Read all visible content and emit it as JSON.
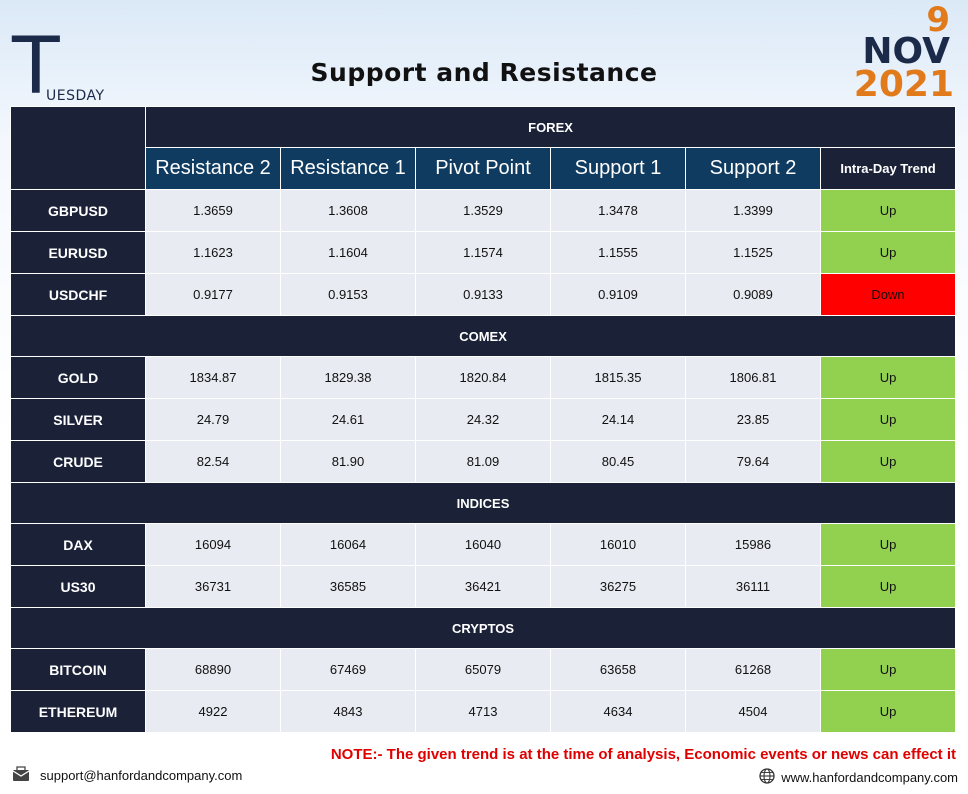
{
  "header": {
    "day_initial": "T",
    "day_rest": "UESDAY",
    "title": "Support and Resistance",
    "date_day": "9",
    "date_month": "NOV",
    "date_year": "2021"
  },
  "columns": [
    "Resistance 2",
    "Resistance 1",
    "Pivot Point",
    "Support 1",
    "Support 2",
    "Intra-Day Trend"
  ],
  "sections": [
    {
      "name": "FOREX",
      "rows": [
        {
          "instrument": "GBPUSD",
          "values": [
            "1.3659",
            "1.3608",
            "1.3529",
            "1.3478",
            "1.3399"
          ],
          "trend": "Up"
        },
        {
          "instrument": "EURUSD",
          "values": [
            "1.1623",
            "1.1604",
            "1.1574",
            "1.1555",
            "1.1525"
          ],
          "trend": "Up"
        },
        {
          "instrument": "USDCHF",
          "values": [
            "0.9177",
            "0.9153",
            "0.9133",
            "0.9109",
            "0.9089"
          ],
          "trend": "Down"
        }
      ]
    },
    {
      "name": "COMEX",
      "rows": [
        {
          "instrument": "GOLD",
          "values": [
            "1834.87",
            "1829.38",
            "1820.84",
            "1815.35",
            "1806.81"
          ],
          "trend": "Up"
        },
        {
          "instrument": "SILVER",
          "values": [
            "24.79",
            "24.61",
            "24.32",
            "24.14",
            "23.85"
          ],
          "trend": "Up"
        },
        {
          "instrument": "CRUDE",
          "values": [
            "82.54",
            "81.90",
            "81.09",
            "80.45",
            "79.64"
          ],
          "trend": "Up"
        }
      ]
    },
    {
      "name": "INDICES",
      "rows": [
        {
          "instrument": "DAX",
          "values": [
            "16094",
            "16064",
            "16040",
            "16010",
            "15986"
          ],
          "trend": "Up"
        },
        {
          "instrument": "US30",
          "values": [
            "36731",
            "36585",
            "36421",
            "36275",
            "36111"
          ],
          "trend": "Up"
        }
      ]
    },
    {
      "name": "CRYPTOS",
      "rows": [
        {
          "instrument": "BITCOIN",
          "values": [
            "68890",
            "67469",
            "65079",
            "63658",
            "61268"
          ],
          "trend": "Up"
        },
        {
          "instrument": "ETHEREUM",
          "values": [
            "4922",
            "4843",
            "4713",
            "4634",
            "4504"
          ],
          "trend": "Up"
        }
      ]
    }
  ],
  "trend_colors": {
    "Up": "#92d050",
    "Down": "#ff0000"
  },
  "footer": {
    "note": "NOTE:- The given trend is at the time of analysis, Economic events or news can effect it",
    "email": "support@hanfordandcompany.com",
    "website": "www.hanfordandcompany.com",
    "email_icon": "mail-icon",
    "website_icon": "globe-icon"
  }
}
